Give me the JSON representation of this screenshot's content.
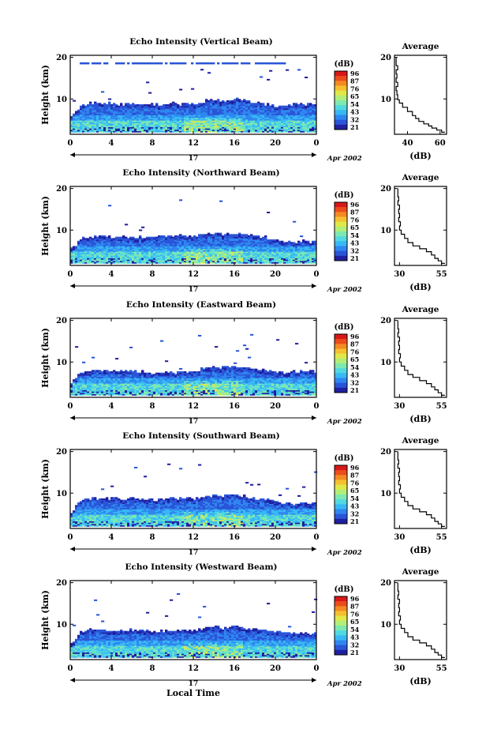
{
  "chart_data": [
    {
      "type": "heatmap",
      "title": "Echo Intensity (Vertical Beam)",
      "ylabel": "Height (km)",
      "xlabel": "",
      "x_ticks": [
        "0",
        "4",
        "8",
        "12",
        "16",
        "20",
        "0"
      ],
      "xlim": [
        0,
        24
      ],
      "y_ticks": [
        "10",
        "20"
      ],
      "ylim": [
        1.5,
        20.5
      ],
      "day_label": "17",
      "month_year": "Apr 2002",
      "colorbar": {
        "label": "(dB)",
        "ticks": [
          "96",
          "87",
          "76",
          "65",
          "54",
          "43",
          "32",
          "21"
        ],
        "range": [
          21,
          96
        ]
      },
      "average": {
        "title": "Average",
        "xlabel": "(dB)",
        "x_ticks": [
          "40",
          "60"
        ],
        "xlim": [
          32,
          64
        ],
        "y_ticks": [
          "10",
          "20"
        ],
        "profile": [
          [
            63,
            2
          ],
          [
            61,
            2.5
          ],
          [
            58,
            3
          ],
          [
            55,
            3.5
          ],
          [
            53,
            4
          ],
          [
            50,
            4.6
          ],
          [
            47,
            5.3
          ],
          [
            45,
            6
          ],
          [
            43,
            7
          ],
          [
            40,
            8
          ],
          [
            37,
            9
          ],
          [
            35,
            9.8
          ],
          [
            34,
            11
          ],
          [
            33.5,
            12
          ],
          [
            33,
            13
          ],
          [
            34,
            14
          ],
          [
            33,
            15
          ],
          [
            33.5,
            16
          ],
          [
            33,
            17
          ],
          [
            34,
            18
          ],
          [
            33,
            19
          ],
          [
            33,
            20
          ]
        ]
      },
      "echo_top_km": [
        5.5,
        8.6,
        8.9,
        8.7,
        8.8,
        8.6,
        8.7,
        8.6,
        8.5,
        8.7,
        8.8,
        8.6,
        8.8,
        9.3,
        9.7,
        9.4,
        9.8,
        9.6,
        9.2,
        8.6,
        8.2,
        8.4,
        8.7,
        8.6,
        8.8
      ]
    },
    {
      "type": "heatmap",
      "title": "Echo Intensity (Northward Beam)",
      "ylabel": "Height (km)",
      "xlabel": "",
      "x_ticks": [
        "0",
        "4",
        "8",
        "12",
        "16",
        "20",
        "0"
      ],
      "xlim": [
        0,
        24
      ],
      "y_ticks": [
        "10",
        "20"
      ],
      "ylim": [
        1.5,
        20.5
      ],
      "day_label": "17",
      "month_year": "Apr 2002",
      "colorbar": {
        "label": "(dB)",
        "ticks": [
          "96",
          "87",
          "76",
          "65",
          "54",
          "43",
          "32",
          "21"
        ],
        "range": [
          21,
          96
        ]
      },
      "average": {
        "title": "Average",
        "xlabel": "(dB)",
        "x_ticks": [
          "30",
          "55"
        ],
        "xlim": [
          27,
          58
        ],
        "y_ticks": [
          "10",
          "20"
        ],
        "profile": [
          [
            57,
            2
          ],
          [
            55,
            2.6
          ],
          [
            53,
            3.2
          ],
          [
            51,
            4
          ],
          [
            49,
            4.8
          ],
          [
            46,
            5.5
          ],
          [
            42,
            6.2
          ],
          [
            38,
            7
          ],
          [
            35,
            8
          ],
          [
            33,
            9
          ],
          [
            31,
            10
          ],
          [
            30,
            11
          ],
          [
            30.5,
            12
          ],
          [
            29.5,
            13
          ],
          [
            30,
            14
          ],
          [
            29.5,
            15
          ],
          [
            30,
            16
          ],
          [
            29,
            17
          ],
          [
            29.5,
            18
          ],
          [
            29,
            19
          ],
          [
            29,
            20
          ]
        ]
      },
      "echo_top_km": [
        5.2,
        8.0,
        8.3,
        8.4,
        8.2,
        8.5,
        8.1,
        8.3,
        8.2,
        8.4,
        8.3,
        8.5,
        8.2,
        8.7,
        9.1,
        8.9,
        9.2,
        9.0,
        8.6,
        8.3,
        7.6,
        7.2,
        6.9,
        7.3,
        7.0
      ]
    },
    {
      "type": "heatmap",
      "title": "Echo Intensity (Eastward Beam)",
      "ylabel": "Height (km)",
      "xlabel": "",
      "x_ticks": [
        "0",
        "4",
        "8",
        "12",
        "16",
        "20",
        "0"
      ],
      "xlim": [
        0,
        24
      ],
      "y_ticks": [
        "10",
        "20"
      ],
      "ylim": [
        1.5,
        20.5
      ],
      "day_label": "17",
      "month_year": "Apr 2002",
      "colorbar": {
        "label": "(dB)",
        "ticks": [
          "96",
          "87",
          "76",
          "65",
          "54",
          "43",
          "32",
          "21"
        ],
        "range": [
          21,
          96
        ]
      },
      "average": {
        "title": "Average",
        "xlabel": "(dB)",
        "x_ticks": [
          "30",
          "55"
        ],
        "xlim": [
          27,
          58
        ],
        "y_ticks": [
          "10",
          "20"
        ],
        "profile": [
          [
            57,
            2
          ],
          [
            55,
            2.6
          ],
          [
            53,
            3.3
          ],
          [
            51,
            4
          ],
          [
            49,
            4.8
          ],
          [
            46,
            5.5
          ],
          [
            42,
            6.3
          ],
          [
            38,
            7
          ],
          [
            35,
            8
          ],
          [
            33,
            9
          ],
          [
            31,
            10
          ],
          [
            30,
            11
          ],
          [
            30.5,
            12
          ],
          [
            29.5,
            13
          ],
          [
            30,
            14
          ],
          [
            29.5,
            15
          ],
          [
            30,
            16
          ],
          [
            29,
            17
          ],
          [
            29.5,
            18
          ],
          [
            29,
            19
          ],
          [
            29,
            20
          ]
        ]
      },
      "echo_top_km": [
        5.0,
        7.6,
        7.8,
        7.7,
        7.9,
        7.6,
        7.8,
        7.5,
        7.3,
        7.4,
        7.2,
        7.5,
        7.6,
        8.2,
        8.6,
        8.7,
        8.8,
        8.5,
        8.2,
        7.9,
        7.4,
        7.3,
        7.6,
        7.8,
        7.6
      ]
    },
    {
      "type": "heatmap",
      "title": "Echo Intensity (Southward Beam)",
      "ylabel": "Height (km)",
      "xlabel": "",
      "x_ticks": [
        "0",
        "4",
        "8",
        "12",
        "16",
        "20",
        "0"
      ],
      "xlim": [
        0,
        24
      ],
      "y_ticks": [
        "10",
        "20"
      ],
      "ylim": [
        1.5,
        20.5
      ],
      "day_label": "17",
      "month_year": "Apr 2002",
      "colorbar": {
        "label": "(dB)",
        "ticks": [
          "96",
          "87",
          "76",
          "65",
          "54",
          "43",
          "32",
          "21"
        ],
        "range": [
          21,
          96
        ]
      },
      "average": {
        "title": "Average",
        "xlabel": "(dB)",
        "x_ticks": [
          "30",
          "55"
        ],
        "xlim": [
          27,
          58
        ],
        "y_ticks": [
          "10",
          "20"
        ],
        "profile": [
          [
            57,
            2
          ],
          [
            55,
            2.6
          ],
          [
            53,
            3.2
          ],
          [
            51,
            4
          ],
          [
            49,
            4.8
          ],
          [
            46,
            5.5
          ],
          [
            42,
            6.2
          ],
          [
            38,
            7
          ],
          [
            35,
            8
          ],
          [
            33,
            9
          ],
          [
            31,
            10
          ],
          [
            30,
            11
          ],
          [
            30.5,
            12
          ],
          [
            29.5,
            13
          ],
          [
            30,
            14
          ],
          [
            29.5,
            15
          ],
          [
            30,
            16
          ],
          [
            29,
            17
          ],
          [
            29.5,
            18
          ],
          [
            29,
            19
          ],
          [
            29,
            20
          ]
        ]
      },
      "echo_top_km": [
        5.1,
        8.4,
        8.6,
        8.5,
        8.7,
        8.4,
        8.6,
        8.5,
        8.3,
        8.4,
        8.5,
        8.6,
        8.4,
        8.9,
        9.3,
        9.1,
        9.4,
        9.1,
        8.7,
        8.4,
        7.9,
        7.6,
        7.4,
        7.6,
        7.5
      ]
    },
    {
      "type": "heatmap",
      "title": "Echo Intensity (Westward Beam)",
      "ylabel": "Height (km)",
      "xlabel": "Local Time",
      "x_ticks": [
        "0",
        "4",
        "8",
        "12",
        "16",
        "20",
        "0"
      ],
      "xlim": [
        0,
        24
      ],
      "y_ticks": [
        "10",
        "20"
      ],
      "ylim": [
        1.5,
        20.5
      ],
      "day_label": "17",
      "month_year": "Apr 2002",
      "colorbar": {
        "label": "(dB)",
        "ticks": [
          "96",
          "87",
          "76",
          "65",
          "54",
          "43",
          "32",
          "21"
        ],
        "range": [
          21,
          96
        ]
      },
      "average": {
        "title": "Average",
        "xlabel": "(dB)",
        "x_ticks": [
          "30",
          "55"
        ],
        "xlim": [
          27,
          58
        ],
        "y_ticks": [
          "10",
          "20"
        ],
        "profile": [
          [
            57,
            2
          ],
          [
            55,
            2.6
          ],
          [
            53,
            3.2
          ],
          [
            51,
            4
          ],
          [
            49,
            4.8
          ],
          [
            46,
            5.5
          ],
          [
            42,
            6.2
          ],
          [
            38,
            7
          ],
          [
            35,
            8
          ],
          [
            33,
            9
          ],
          [
            31,
            10
          ],
          [
            30,
            11
          ],
          [
            30.5,
            12
          ],
          [
            29.5,
            13
          ],
          [
            30,
            14
          ],
          [
            29.5,
            15
          ],
          [
            30,
            16
          ],
          [
            29,
            17
          ],
          [
            29.5,
            18
          ],
          [
            29,
            19
          ],
          [
            29,
            20
          ]
        ]
      },
      "echo_top_km": [
        5.0,
        8.3,
        8.4,
        8.5,
        8.3,
        8.4,
        8.6,
        8.3,
        8.2,
        8.3,
        8.4,
        8.5,
        8.3,
        8.8,
        9.2,
        9.0,
        9.3,
        9.0,
        8.6,
        8.3,
        8.0,
        7.9,
        7.6,
        7.7,
        7.6
      ]
    }
  ],
  "colors": {
    "scale": [
      "#2020a0",
      "#2a55d8",
      "#2f86f0",
      "#38b8f5",
      "#52d8e0",
      "#7ee8b0",
      "#b2ee7a",
      "#e0e848",
      "#f5c030",
      "#f48a22",
      "#ec4c1c",
      "#d81818"
    ]
  }
}
